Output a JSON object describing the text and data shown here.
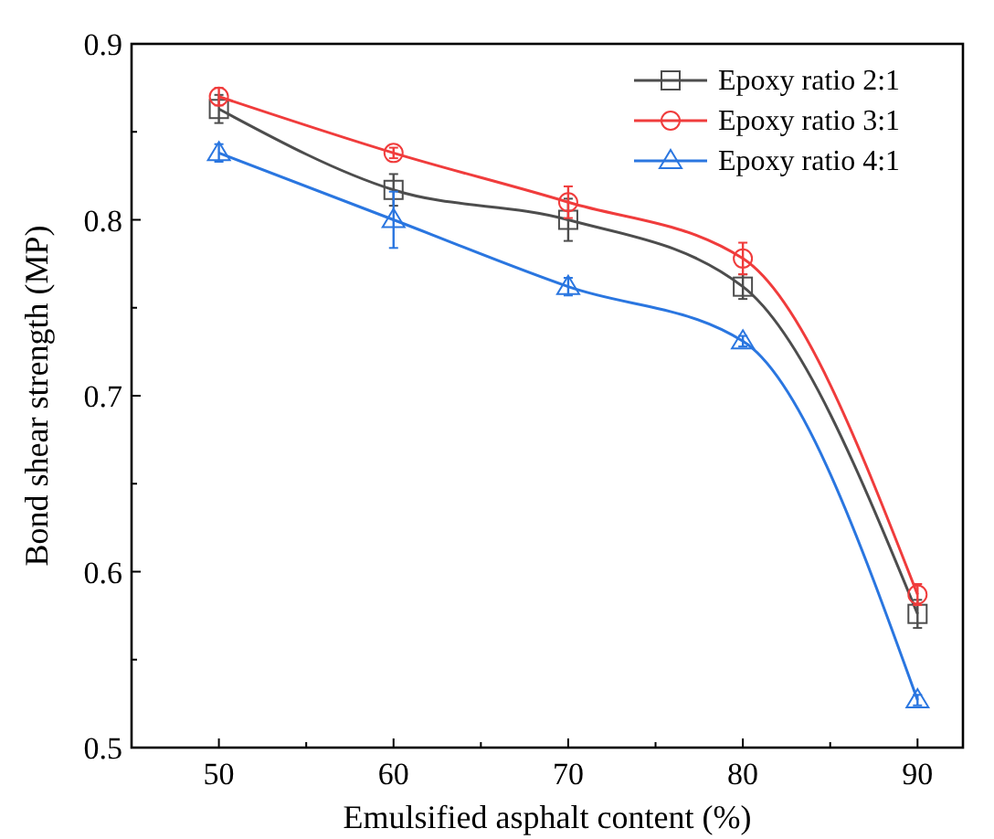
{
  "chart_data": {
    "type": "line",
    "xlabel": "Emulsified asphalt content (%)",
    "ylabel": "Bond shear strength (MP)",
    "x": [
      50,
      60,
      70,
      80,
      90
    ],
    "xlim": [
      45,
      92.6
    ],
    "xticks": [
      50,
      {
        "value": 55,
        "label": null
      },
      60,
      {
        "value": 65,
        "label": null
      },
      70,
      {
        "value": 75,
        "label": null
      },
      80,
      {
        "value": 85,
        "label": null
      },
      90
    ],
    "ylim": [
      0.5,
      0.9
    ],
    "yticks": [
      0.5,
      {
        "value": 0.55,
        "label": null
      },
      0.6,
      {
        "value": 0.65,
        "label": null
      },
      0.7,
      {
        "value": 0.75,
        "label": null
      },
      0.8,
      {
        "value": 0.85,
        "label": null
      },
      0.9
    ],
    "series": [
      {
        "name": "Epoxy ratio 2:1",
        "color": "#4d4d4d",
        "marker": "square",
        "values": [
          0.863,
          0.817,
          0.8,
          0.762,
          0.576
        ],
        "errors": [
          0.008,
          0.009,
          0.012,
          0.007,
          0.008
        ]
      },
      {
        "name": "Epoxy ratio 3:1",
        "color": "#f03c3c",
        "marker": "circle",
        "values": [
          0.87,
          0.838,
          0.81,
          0.778,
          0.587
        ],
        "errors": [
          0.005,
          0.003,
          0.009,
          0.009,
          0.006
        ]
      },
      {
        "name": "Epoxy ratio 4:1",
        "color": "#2a76e0",
        "marker": "triangle",
        "values": [
          0.838,
          0.8,
          0.762,
          0.731,
          0.527
        ],
        "errors": [
          0.005,
          0.016,
          0.005,
          0.003,
          0.003
        ]
      }
    ],
    "legend": "top right",
    "grid": false,
    "line_style": "solid"
  }
}
